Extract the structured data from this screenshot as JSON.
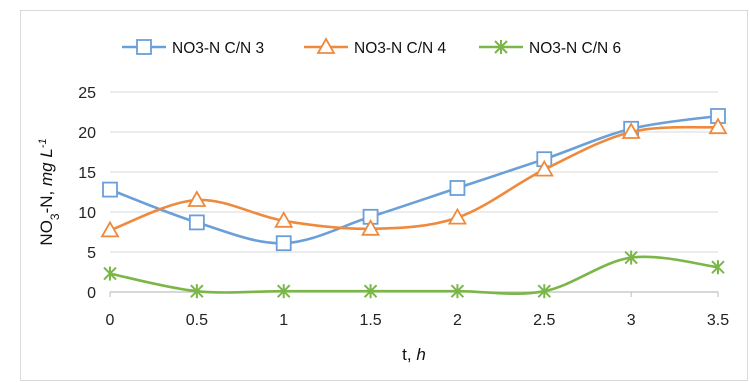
{
  "chart_data": {
    "type": "line",
    "smooth": true,
    "x": [
      0,
      0.5,
      1,
      1.5,
      2,
      2.5,
      3,
      3.5
    ],
    "x_ticks": [
      "0",
      "0.5",
      "1",
      "1.5",
      "2",
      "2.5",
      "3",
      "3.5"
    ],
    "y_ticks": [
      "0",
      "5",
      "10",
      "15",
      "20",
      "25"
    ],
    "ylim": [
      0,
      25
    ],
    "xlabel": {
      "main": "t, ",
      "unit": "h"
    },
    "ylabel": {
      "base": "NO",
      "sub": "3",
      "mid": "-N, ",
      "unit": "mg L",
      "sup": "-1"
    },
    "grid": "horizontal",
    "legend_position": "top",
    "series": [
      {
        "name": "NO3-N C/N 3",
        "color": "#6a9fd8",
        "marker": "square",
        "values": [
          12.8,
          8.7,
          6.1,
          9.4,
          13.0,
          16.6,
          20.4,
          22.0
        ]
      },
      {
        "name": "NO3-N C/N 4",
        "color": "#ee8a3d",
        "marker": "triangle",
        "values": [
          7.7,
          11.5,
          8.9,
          7.9,
          9.3,
          15.3,
          20.0,
          20.6
        ]
      },
      {
        "name": "NO3-N C/N 6",
        "color": "#7ab648",
        "marker": "star",
        "values": [
          2.3,
          0.1,
          0.1,
          0.1,
          0.1,
          0.1,
          4.3,
          3.1
        ]
      }
    ]
  }
}
